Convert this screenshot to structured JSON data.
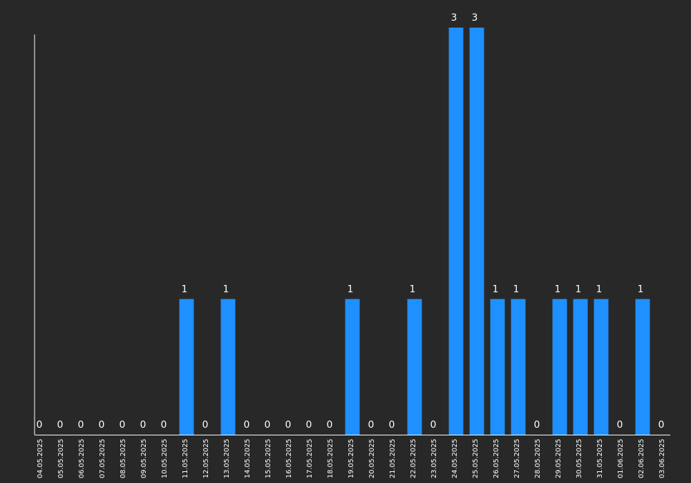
{
  "colors": {
    "background": "#282828",
    "bar": "#1e90ff",
    "text": "#ffffff",
    "axis": "#ffffff"
  },
  "chart_data": {
    "type": "bar",
    "categories": [
      "04.05.2025",
      "05.05.2025",
      "06.05.2025",
      "07.05.2025",
      "08.05.2025",
      "09.05.2025",
      "10.05.2025",
      "11.05.2025",
      "12.05.2025",
      "13.05.2025",
      "14.05.2025",
      "15.05.2025",
      "16.05.2025",
      "17.05.2025",
      "18.05.2025",
      "19.05.2025",
      "20.05.2025",
      "21.05.2025",
      "22.05.2025",
      "23.05.2025",
      "24.05.2025",
      "25.05.2025",
      "26.05.2025",
      "27.05.2025",
      "28.05.2025",
      "29.05.2025",
      "30.05.2025",
      "31.05.2025",
      "01.06.2025",
      "02.06.2025",
      "03.06.2025"
    ],
    "values": [
      0,
      0,
      0,
      0,
      0,
      0,
      0,
      1,
      0,
      1,
      0,
      0,
      0,
      0,
      0,
      1,
      0,
      0,
      1,
      0,
      3,
      3,
      1,
      1,
      0,
      1,
      1,
      1,
      0,
      1,
      0
    ],
    "title": "",
    "xlabel": "",
    "ylabel": "",
    "ylim": [
      0,
      3
    ],
    "grid": false,
    "legend": "none",
    "data_labels": true,
    "x_tick_rotation": "vertical"
  }
}
